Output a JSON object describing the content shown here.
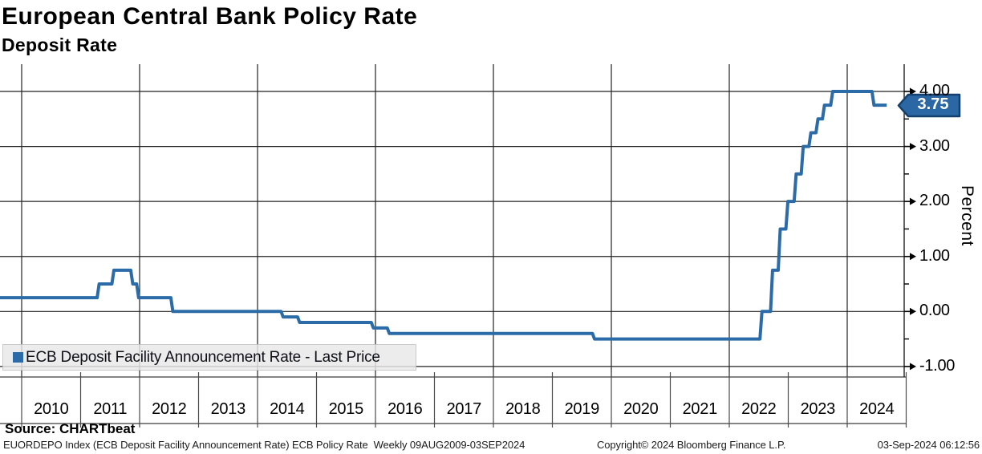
{
  "header": {
    "title": "European Central Bank Policy Rate",
    "subtitle": "Deposit Rate"
  },
  "legend": {
    "label": "ECB Deposit Facility Announcement Rate - Last Price",
    "swatch_color": "#2b6ca8"
  },
  "badge": {
    "last_price": "3.75",
    "fill": "#2b67a5",
    "border": "#14406e"
  },
  "y_axis": {
    "title": "Percent",
    "ticks": [
      "4.00",
      "3.00",
      "2.00",
      "1.00",
      "0.00",
      "-1.00"
    ],
    "tick_values": [
      4,
      3,
      2,
      1,
      0,
      -1
    ],
    "minor_values": [
      3.5,
      2.5,
      1.5,
      0.5,
      -0.5
    ]
  },
  "x_axis": {
    "years": [
      "2010",
      "2011",
      "2012",
      "2013",
      "2014",
      "2015",
      "2016",
      "2017",
      "2018",
      "2019",
      "2020",
      "2021",
      "2022",
      "2023",
      "2024"
    ],
    "gridline_years": [
      2010,
      2012,
      2014,
      2016,
      2018,
      2020,
      2022,
      2024
    ]
  },
  "source": {
    "label": "Source: CHARTbeat"
  },
  "footer": {
    "left": "EUORDEPO Index (ECB Deposit Facility Announcement Rate) ECB Policy Rate  Weekly 09AUG2009-03SEP2024",
    "center": "Copyright© 2024 Bloomberg Finance L.P.",
    "right": "03-Sep-2024 06:12:56"
  },
  "colors": {
    "line": "#2b6ca8",
    "grid": "#222222",
    "band": "#3a3a3a",
    "separator": "#4a4a4a"
  },
  "chart_data": {
    "type": "line",
    "subtype": "step",
    "title": "European Central Bank Policy Rate",
    "subtitle": "Deposit Rate",
    "ylabel": "Percent",
    "ylim": [
      -1,
      4
    ],
    "x_range_decimal_years": [
      2009.6,
      2024.67
    ],
    "grid": "on",
    "legend_position": "bottom-left",
    "series": [
      {
        "name": "ECB Deposit Facility Announcement Rate - Last Price",
        "color": "#2b6ca8",
        "last_price": 3.75,
        "steps": [
          [
            2009.55,
            0.25
          ],
          [
            2011.28,
            0.5
          ],
          [
            2011.53,
            0.75
          ],
          [
            2011.85,
            0.5
          ],
          [
            2011.95,
            0.25
          ],
          [
            2012.53,
            0.0
          ],
          [
            2014.4,
            -0.1
          ],
          [
            2014.68,
            -0.2
          ],
          [
            2015.93,
            -0.3
          ],
          [
            2016.2,
            -0.4
          ],
          [
            2019.68,
            -0.5
          ],
          [
            2022.52,
            0.0
          ],
          [
            2022.7,
            0.75
          ],
          [
            2022.83,
            1.5
          ],
          [
            2022.96,
            2.0
          ],
          [
            2023.1,
            2.5
          ],
          [
            2023.22,
            3.0
          ],
          [
            2023.35,
            3.25
          ],
          [
            2023.47,
            3.5
          ],
          [
            2023.58,
            3.75
          ],
          [
            2023.72,
            4.0
          ],
          [
            2024.42,
            3.75
          ]
        ],
        "end_decimal_year": 2024.67
      }
    ]
  }
}
